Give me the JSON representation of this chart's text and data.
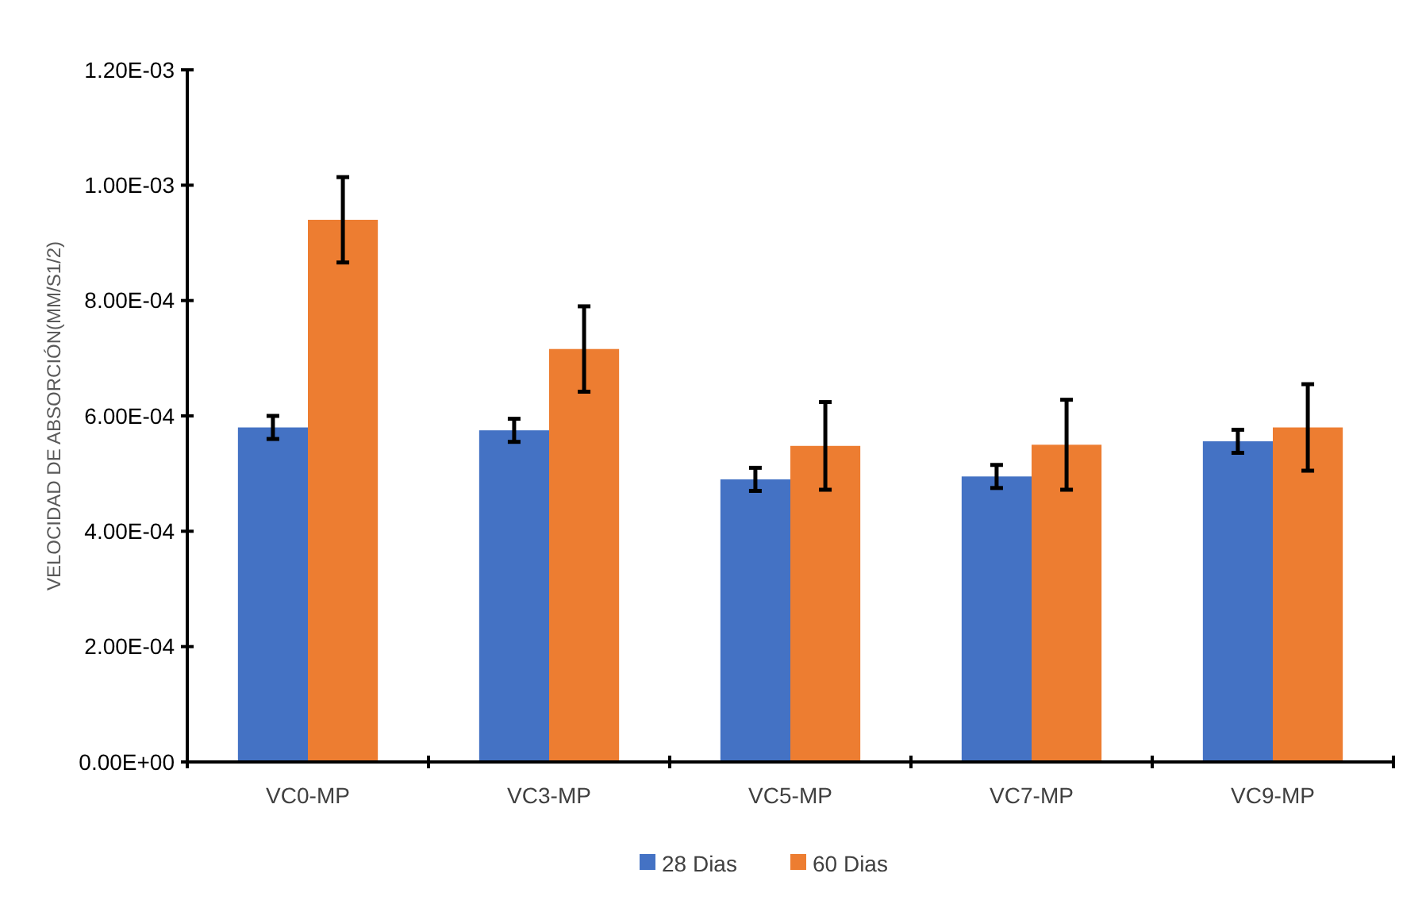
{
  "chart_data": {
    "type": "bar",
    "ylabel": "VELOCIDAD DE ABSORCIÓN(MM/S1/2)",
    "categories": [
      "VC0-MP",
      "VC3-MP",
      "VC5-MP",
      "VC7-MP",
      "VC9-MP"
    ],
    "series": [
      {
        "name": "28 Dias",
        "color": "#4472c4",
        "values": [
          0.00058,
          0.000575,
          0.00049,
          0.000495,
          0.000556
        ],
        "errors": [
          2e-05,
          2e-05,
          2e-05,
          2e-05,
          2e-05
        ]
      },
      {
        "name": "60 Dias",
        "color": "#ed7d31",
        "values": [
          0.00094,
          0.000716,
          0.000548,
          0.00055,
          0.00058
        ],
        "errors": [
          7.4e-05,
          7.4e-05,
          7.6e-05,
          7.8e-05,
          7.5e-05
        ]
      }
    ],
    "ylim": [
      0,
      0.0012
    ],
    "yticks": [
      {
        "value": 0,
        "label": "0.00E+00"
      },
      {
        "value": 0.0002,
        "label": "2.00E-04"
      },
      {
        "value": 0.0004,
        "label": "4.00E-04"
      },
      {
        "value": 0.0006,
        "label": "6.00E-04"
      },
      {
        "value": 0.0008,
        "label": "8.00E-04"
      },
      {
        "value": 0.001,
        "label": "1.00E-03"
      },
      {
        "value": 0.0012,
        "label": "1.20E-03"
      }
    ],
    "legend": "bottom",
    "grid": false
  }
}
